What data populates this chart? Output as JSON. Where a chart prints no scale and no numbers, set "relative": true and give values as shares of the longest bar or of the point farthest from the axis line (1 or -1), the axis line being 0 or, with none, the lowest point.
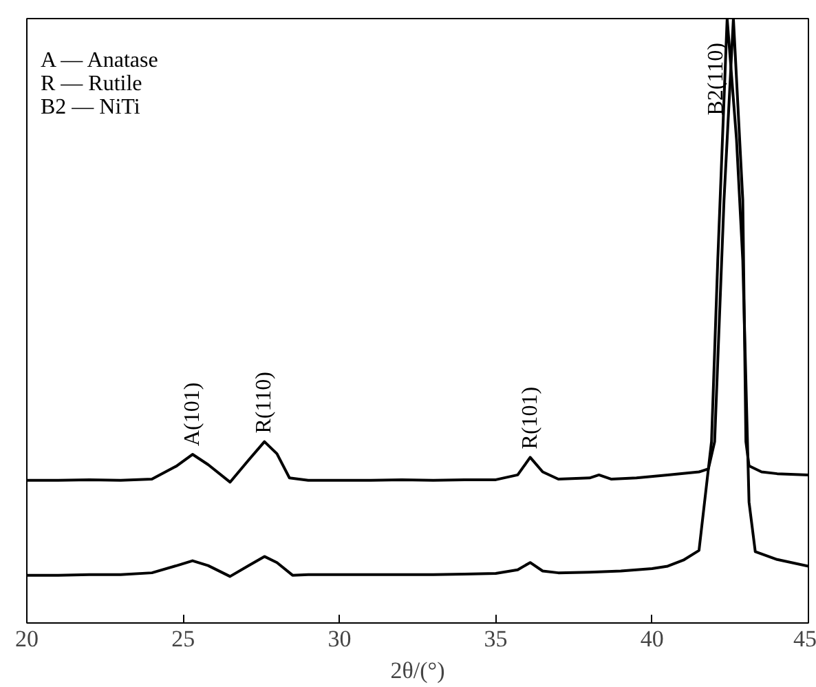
{
  "chart_data": {
    "type": "line",
    "relative": true,
    "xlabel": "2θ/(°)",
    "xlim": [
      20,
      45
    ],
    "xticks": [
      20,
      25,
      30,
      35,
      40,
      45
    ],
    "grid": false,
    "tick_labels": "x",
    "series": [
      {
        "color": "#000000",
        "x": [
          20,
          21,
          22,
          23,
          24,
          24.8,
          25.3,
          25.8,
          26.5,
          27.1,
          27.6,
          28,
          28.4,
          29,
          30,
          31,
          32,
          33,
          34,
          35,
          35.7,
          36.1,
          36.5,
          37,
          38,
          38.3,
          38.7,
          39.5,
          40.5,
          41.5,
          41.8,
          42,
          42.3,
          42.6,
          42.9,
          43,
          43.1,
          43.5,
          44,
          45
        ],
        "values": [
          0.236,
          0.236,
          0.237,
          0.236,
          0.238,
          0.26,
          0.279,
          0.262,
          0.233,
          0.27,
          0.3,
          0.28,
          0.24,
          0.236,
          0.236,
          0.236,
          0.237,
          0.236,
          0.237,
          0.237,
          0.245,
          0.274,
          0.25,
          0.238,
          0.24,
          0.245,
          0.238,
          0.24,
          0.245,
          0.25,
          0.255,
          0.3,
          0.7,
          1,
          0.7,
          0.3,
          0.26,
          0.25,
          0.247,
          0.245
        ]
      },
      {
        "color": "#000000",
        "x": [
          20,
          21,
          22,
          23,
          24,
          24.8,
          25.3,
          25.8,
          26.5,
          27.1,
          27.6,
          28,
          28.5,
          29,
          30,
          31,
          32,
          33,
          34,
          35,
          35.7,
          36.1,
          36.5,
          37,
          38,
          39,
          40,
          40.5,
          41,
          41.5,
          41.9,
          42.1,
          42.4,
          42.7,
          42.9,
          43.1,
          43.3,
          44,
          45
        ],
        "values": [
          0.079,
          0.079,
          0.08,
          0.08,
          0.083,
          0.095,
          0.103,
          0.095,
          0.077,
          0.095,
          0.11,
          0.1,
          0.079,
          0.08,
          0.08,
          0.08,
          0.08,
          0.08,
          0.081,
          0.082,
          0.088,
          0.1,
          0.086,
          0.083,
          0.084,
          0.086,
          0.09,
          0.094,
          0.104,
          0.12,
          0.3,
          0.6,
          1,
          0.8,
          0.6,
          0.2,
          0.118,
          0.105,
          0.094
        ]
      }
    ],
    "annotations": [
      {
        "text": "A(101)",
        "x": 25.3,
        "y": 0.279
      },
      {
        "text": "R(110)",
        "x": 27.6,
        "y": 0.3
      },
      {
        "text": "R(101)",
        "x": 36.1,
        "y": 0.274
      },
      {
        "text": "B2(110)",
        "x": 42.6,
        "y": 0.84
      },
      "A — Anatase",
      "R — Rutile",
      "B2 — NiTi"
    ]
  }
}
